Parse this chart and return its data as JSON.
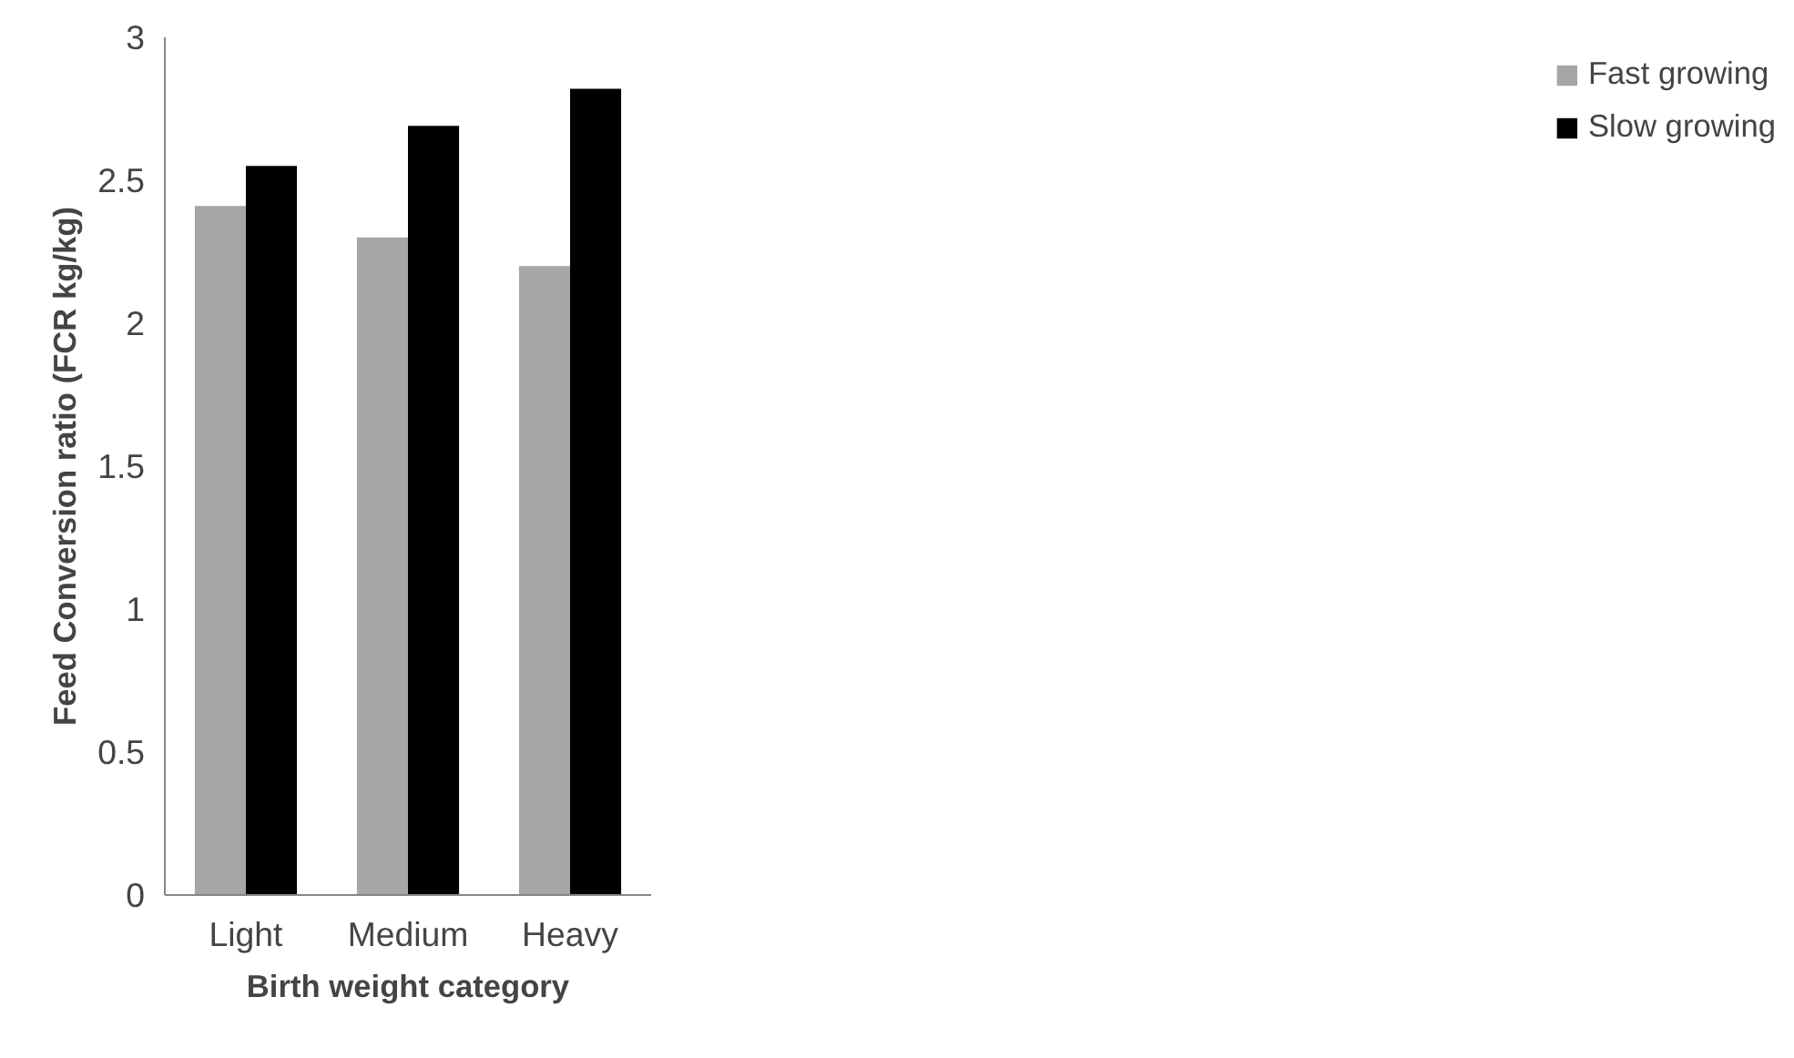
{
  "chart_data": {
    "type": "bar",
    "xlabel": "Birth weight category",
    "ylabel": "Feed Conversion ratio (FCR kg/kg)",
    "categories": [
      "Light",
      "Medium",
      "Heavy"
    ],
    "series": [
      {
        "name": "Fast growing",
        "color": "#a6a6a6",
        "values": [
          2.41,
          2.3,
          2.2
        ]
      },
      {
        "name": "Slow growing",
        "color": "#000000",
        "values": [
          2.55,
          2.69,
          2.82
        ]
      }
    ],
    "ylim": [
      0,
      3
    ],
    "yticks": [
      0,
      0.5,
      1,
      1.5,
      2,
      2.5,
      3
    ],
    "grid": false,
    "legend": "right"
  }
}
